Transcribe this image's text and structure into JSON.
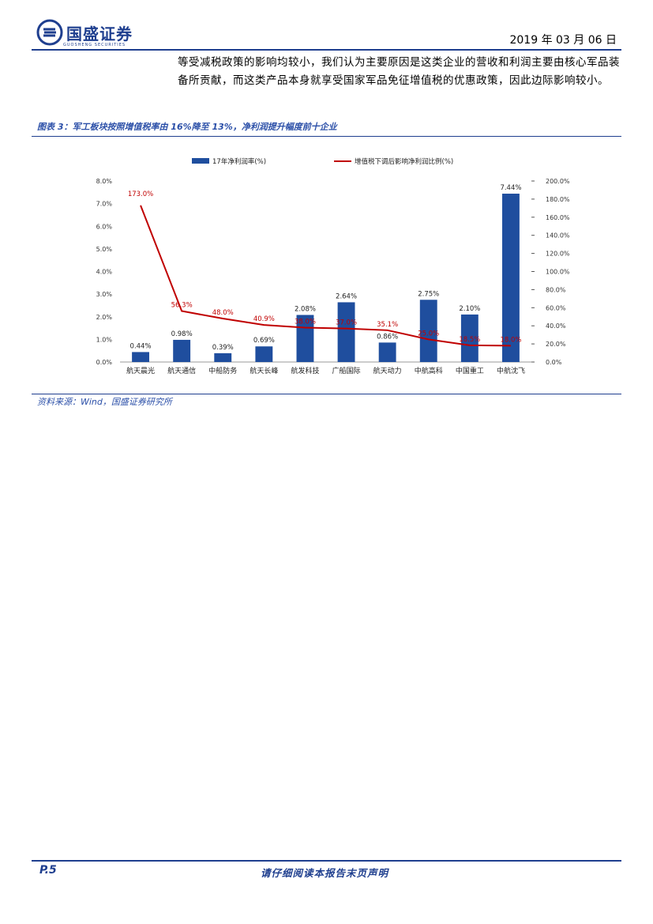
{
  "header": {
    "company": "国盛证券",
    "company_en": "GUOSHENG SECURITIES",
    "date": "2019 年 03 月 06 日"
  },
  "body": {
    "paragraph": "等受减税政策的影响均较小，我们认为主要原因是这类企业的营收和利润主要由核心军品装备所贡献，而这类产品本身就享受国家军品免征增值税的优惠政策，因此边际影响较小。"
  },
  "figure": {
    "title": "图表 3：军工板块按照增值税率由 16%降至 13%，净利润提升幅度前十企业",
    "source": "资料来源：Wind，国盛证券研究所"
  },
  "chart_data": {
    "type": "bar",
    "categories": [
      "航天晨光",
      "航天通信",
      "中船防务",
      "航天长峰",
      "航发科技",
      "广船国际",
      "航天动力",
      "中航高科",
      "中国重工",
      "中航沈飞"
    ],
    "series": [
      {
        "name": "17年净利润率(%)",
        "type": "bar",
        "axis": "left",
        "color": "#1f4e9e",
        "values": [
          0.44,
          0.98,
          0.39,
          0.69,
          2.08,
          2.64,
          0.86,
          2.75,
          2.1,
          7.44
        ],
        "labels": [
          "0.44%",
          "0.98%",
          "0.39%",
          "0.69%",
          "2.08%",
          "2.64%",
          "0.86%",
          "2.75%",
          "2.10%",
          "7.44%"
        ]
      },
      {
        "name": "增值税下调后影响净利润比例(%)",
        "type": "line",
        "axis": "right",
        "color": "#c00000",
        "values": [
          173.0,
          56.3,
          48.0,
          40.9,
          38.0,
          37.0,
          35.1,
          25.0,
          18.5,
          18.0
        ],
        "labels": [
          "173.0%",
          "56.3%",
          "48.0%",
          "40.9%",
          "38.0%",
          "37.0%",
          "35.1%",
          "25.0%",
          "18.5%",
          "18.0%"
        ]
      }
    ],
    "y_left": {
      "min": 0,
      "max": 8,
      "ticks": [
        "0.0%",
        "1.0%",
        "2.0%",
        "3.0%",
        "4.0%",
        "5.0%",
        "6.0%",
        "7.0%",
        "8.0%"
      ]
    },
    "y_right": {
      "min": 0,
      "max": 200,
      "ticks": [
        "0.0%",
        "20.0%",
        "40.0%",
        "60.0%",
        "80.0%",
        "100.0%",
        "120.0%",
        "140.0%",
        "160.0%",
        "180.0%",
        "200.0%"
      ]
    },
    "legend_position": "top"
  },
  "footer": {
    "page": "P.5",
    "note": "请仔细阅读本报告末页声明"
  }
}
